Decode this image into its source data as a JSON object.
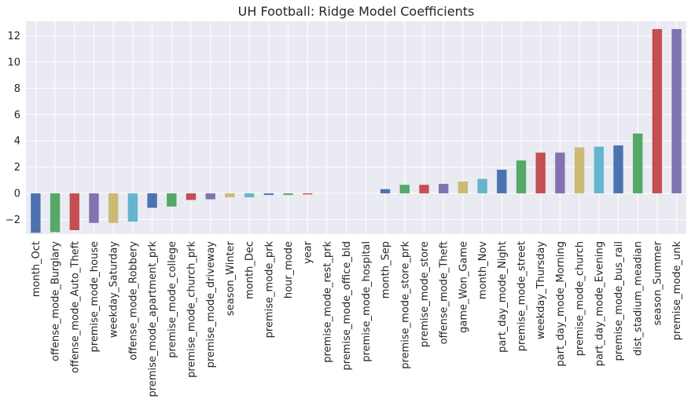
{
  "chart_data": {
    "type": "bar",
    "title": "UH Football: Ridge Model Coefficients",
    "xlabel": "",
    "ylabel": "",
    "ylim": [
      -3.1,
      13.1
    ],
    "yticks": [
      -2,
      0,
      2,
      4,
      6,
      8,
      10,
      12
    ],
    "ytick_labels": [
      "−2",
      "0",
      "2",
      "4",
      "6",
      "8",
      "10",
      "12"
    ],
    "grid": true,
    "legend": "none",
    "categories": [
      "month_Oct",
      "offense_mode_Burglary",
      "offense_mode_Auto_Theft",
      "premise_mode_house",
      "weekday_Saturday",
      "offense_mode_Robbery",
      "premise_mode_apartment_prk",
      "premise_mode_college",
      "premise_mode_church_prk",
      "premise_mode_driveway",
      "season_Winter",
      "month_Dec",
      "premise_mode_prk",
      "hour_mode",
      "year",
      "premise_mode_rest_prk",
      "premise_mode_office_bld",
      "premise_mode_hospital",
      "month_Sep",
      "premise_mode_store_prk",
      "premise_mode_store",
      "offense_mode_Theft",
      "game_Won_Game",
      "month_Nov",
      "part_day_mode_Night",
      "premise_mode_street",
      "weekday_Thursday",
      "part_day_mode_Morning",
      "premise_mode_church",
      "part_day_mode_Evening",
      "premise_mode_bus_rail",
      "dist_stadium_meadian",
      "season_Summer",
      "premise_mode_unk"
    ],
    "values": [
      -3.0,
      -2.95,
      -2.8,
      -2.25,
      -2.25,
      -2.15,
      -1.1,
      -1.0,
      -0.5,
      -0.45,
      -0.3,
      -0.3,
      -0.12,
      -0.12,
      -0.08,
      0.0,
      0.0,
      0.0,
      0.32,
      0.65,
      0.65,
      0.72,
      0.9,
      1.1,
      1.8,
      2.5,
      3.1,
      3.1,
      3.5,
      3.55,
      3.65,
      4.55,
      12.5,
      12.5
    ],
    "colors": [
      "#4c72b0",
      "#55a868",
      "#c44e52",
      "#8172b2",
      "#ccb974",
      "#64b5cd"
    ],
    "background": "#eaeaf2",
    "grid_color": "#ffffff"
  }
}
